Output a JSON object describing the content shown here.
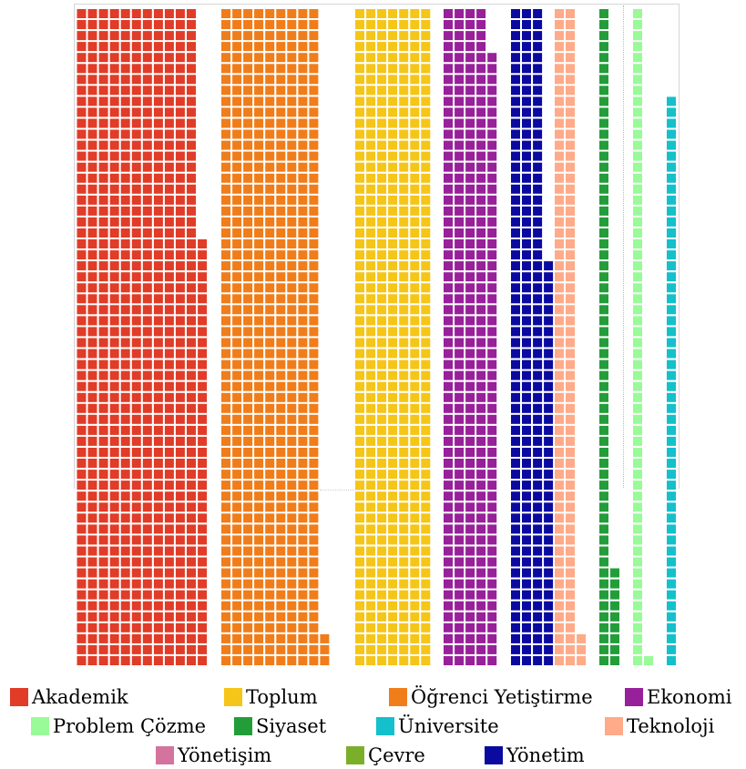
{
  "chart_data": {
    "type": "waffle",
    "unit_rows": 60,
    "series": [
      {
        "name": "Akademik",
        "value": 699,
        "columns": 12,
        "color": "#E03C28"
      },
      {
        "name": "Öğrenci Yetiştirme",
        "value": 543,
        "columns": 10,
        "color": "#F07D1A"
      },
      {
        "name": "Toplum",
        "value": 446,
        "columns": 6,
        "color": "#F5C518"
      },
      {
        "name": "Ekonomi",
        "value": 296,
        "columns": 5,
        "color": "#98209A"
      },
      {
        "name": "Yönetim",
        "value": 217,
        "columns": 3,
        "color": "#0A0AA0"
      },
      {
        "name": "Teknoloji",
        "value": 123,
        "columns": 2,
        "color": "#FFAA88"
      },
      {
        "name": "Siyaset",
        "value": 69,
        "columns": 1,
        "color": "#239D3A"
      },
      {
        "name": "Problem Çözme",
        "value": 61,
        "columns": 1,
        "color": "#98FB98"
      },
      {
        "name": "Üniversite",
        "value": 52,
        "columns": 1,
        "color": "#14C0CC"
      }
    ],
    "legend": [
      {
        "label": "Akademik",
        "color": "#E03C28"
      },
      {
        "label": "Toplum",
        "color": "#F5C518"
      },
      {
        "label": "Öğrenci Yetiştirme",
        "color": "#F07D1A"
      },
      {
        "label": "Ekonomi",
        "color": "#98209A"
      },
      {
        "label": "Problem Çözme",
        "color": "#98FB98"
      },
      {
        "label": "Siyaset",
        "color": "#239D3A"
      },
      {
        "label": "Üniversite",
        "color": "#14C0CC"
      },
      {
        "label": "Teknoloji",
        "color": "#FFAA88"
      },
      {
        "label": "Yönetişim",
        "color": "#D4739E"
      },
      {
        "label": "Çevre",
        "color": "#7BAF2A"
      },
      {
        "label": "Yönetim",
        "color": "#0A0AA0"
      }
    ],
    "legend_placement": "bottom"
  }
}
